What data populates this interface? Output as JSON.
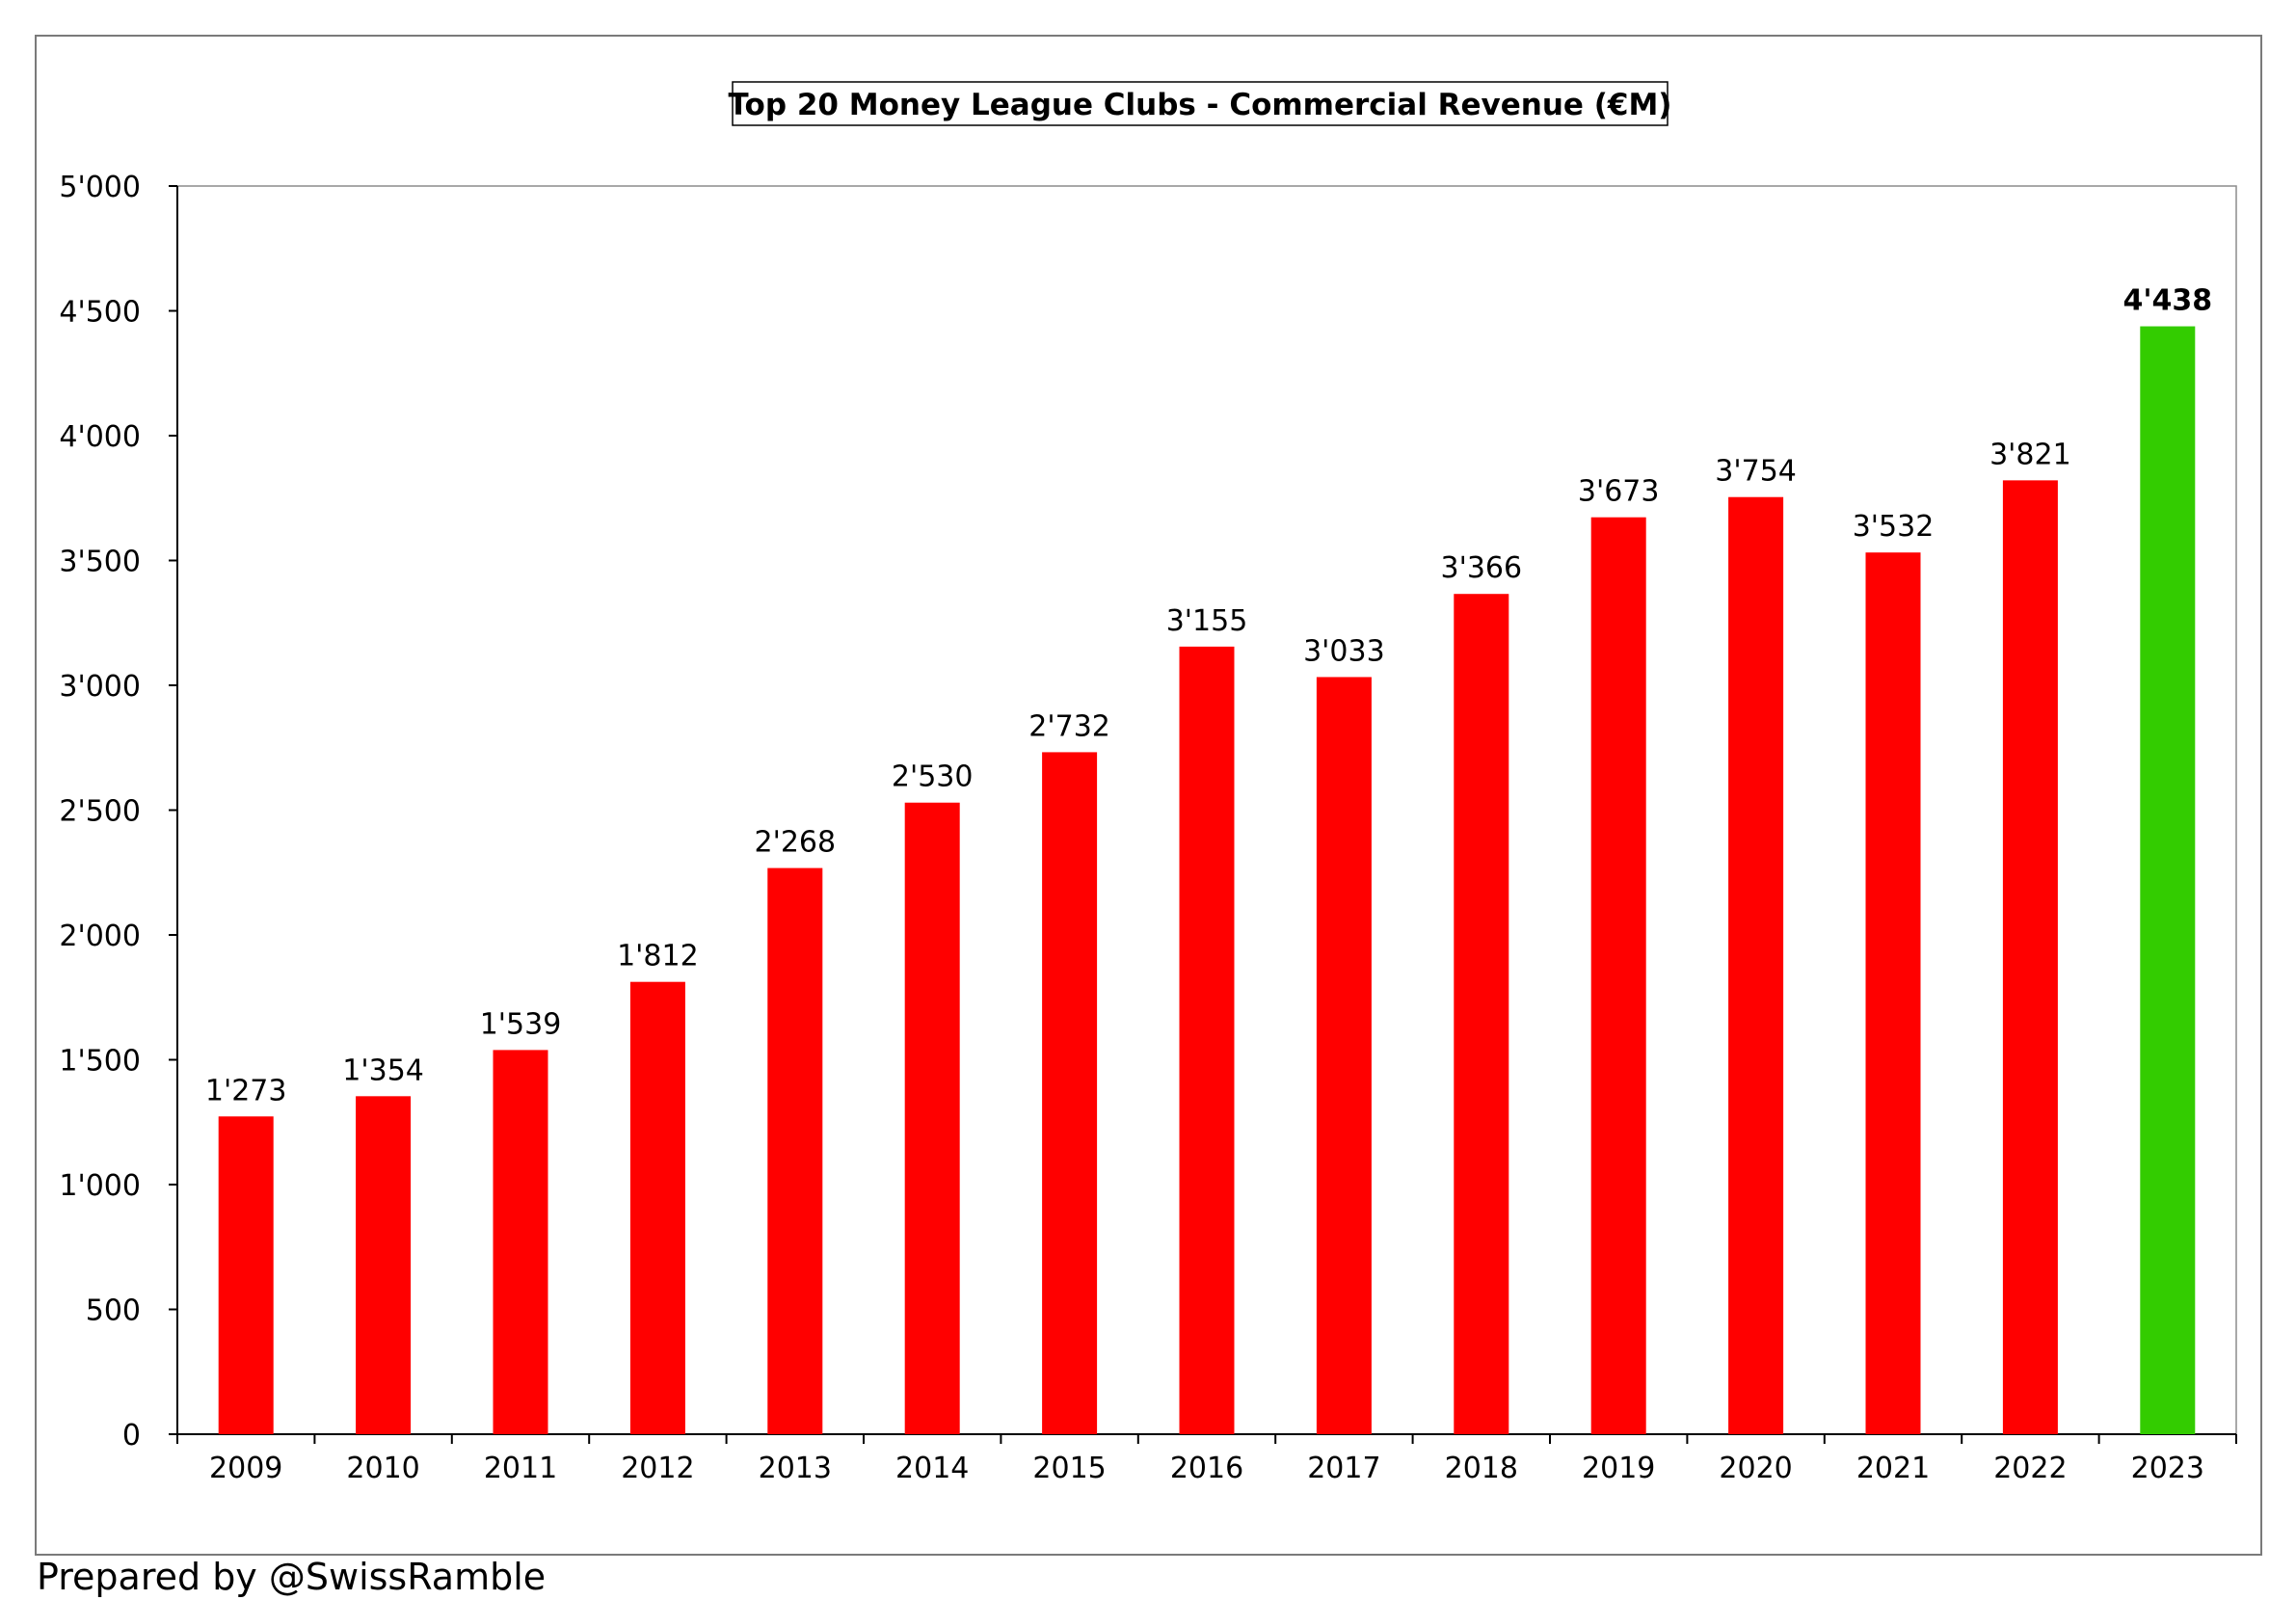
{
  "chart_data": {
    "type": "bar",
    "title": "Top 20 Money League Clubs - Commercial Revenue (€M)",
    "xlabel": "",
    "ylabel": "",
    "ylim": [
      0,
      5000
    ],
    "yticks": [
      {
        "value": 0,
        "label": "0"
      },
      {
        "value": 500,
        "label": "500"
      },
      {
        "value": 1000,
        "label": "1'000"
      },
      {
        "value": 1500,
        "label": "1'500"
      },
      {
        "value": 2000,
        "label": "2'000"
      },
      {
        "value": 2500,
        "label": "2'500"
      },
      {
        "value": 3000,
        "label": "3'000"
      },
      {
        "value": 3500,
        "label": "3'500"
      },
      {
        "value": 4000,
        "label": "4'000"
      },
      {
        "value": 4500,
        "label": "4'500"
      },
      {
        "value": 5000,
        "label": "5'000"
      }
    ],
    "categories": [
      "2009",
      "2010",
      "2011",
      "2012",
      "2013",
      "2014",
      "2015",
      "2016",
      "2017",
      "2018",
      "2019",
      "2020",
      "2021",
      "2022",
      "2023"
    ],
    "values": [
      1273,
      1354,
      1539,
      1812,
      2268,
      2530,
      2732,
      3155,
      3033,
      3366,
      3673,
      3754,
      3532,
      3821,
      4438
    ],
    "data_labels": [
      "1'273",
      "1'354",
      "1'539",
      "1'812",
      "2'268",
      "2'530",
      "2'732",
      "3'155",
      "3'033",
      "3'366",
      "3'673",
      "3'754",
      "3'532",
      "3'821",
      "4'438"
    ],
    "colors": {
      "default": "#ff0000",
      "highlight": "#33cc00"
    },
    "highlight_category": "2023",
    "grid": false,
    "legend": "none"
  },
  "footer": {
    "credit": "Prepared by @SwissRamble"
  }
}
